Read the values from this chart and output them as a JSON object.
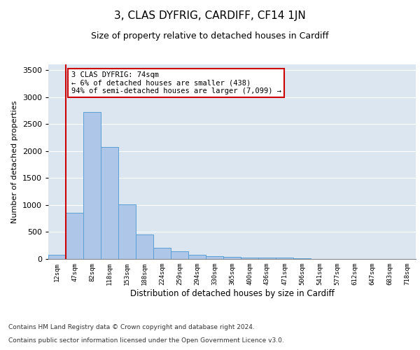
{
  "title": "3, CLAS DYFRIG, CARDIFF, CF14 1JN",
  "subtitle": "Size of property relative to detached houses in Cardiff",
  "xlabel": "Distribution of detached houses by size in Cardiff",
  "ylabel": "Number of detached properties",
  "categories": [
    "12sqm",
    "47sqm",
    "82sqm",
    "118sqm",
    "153sqm",
    "188sqm",
    "224sqm",
    "259sqm",
    "294sqm",
    "330sqm",
    "365sqm",
    "400sqm",
    "436sqm",
    "471sqm",
    "506sqm",
    "541sqm",
    "577sqm",
    "612sqm",
    "647sqm",
    "683sqm",
    "718sqm"
  ],
  "values": [
    75,
    850,
    2720,
    2070,
    1010,
    450,
    210,
    140,
    75,
    55,
    45,
    30,
    20,
    20,
    10,
    5,
    5,
    3,
    3,
    2,
    2
  ],
  "bar_color": "#aec6e8",
  "bar_edgecolor": "#5a9fd4",
  "vline_color": "#cc0000",
  "annotation_text": "3 CLAS DYFRIG: 74sqm\n← 6% of detached houses are smaller (438)\n94% of semi-detached houses are larger (7,099) →",
  "annotation_box_color": "#ffffff",
  "annotation_box_edgecolor": "#cc0000",
  "ylim": [
    0,
    3600
  ],
  "yticks": [
    0,
    500,
    1000,
    1500,
    2000,
    2500,
    3000,
    3500
  ],
  "plot_bg_color": "#dce6f0",
  "footer_line1": "Contains HM Land Registry data © Crown copyright and database right 2024.",
  "footer_line2": "Contains public sector information licensed under the Open Government Licence v3.0.",
  "title_fontsize": 11,
  "subtitle_fontsize": 9,
  "annotation_fontsize": 7.5,
  "footer_fontsize": 6.5,
  "ylabel_fontsize": 8,
  "xlabel_fontsize": 8.5,
  "ytick_fontsize": 8,
  "xtick_fontsize": 6.5
}
